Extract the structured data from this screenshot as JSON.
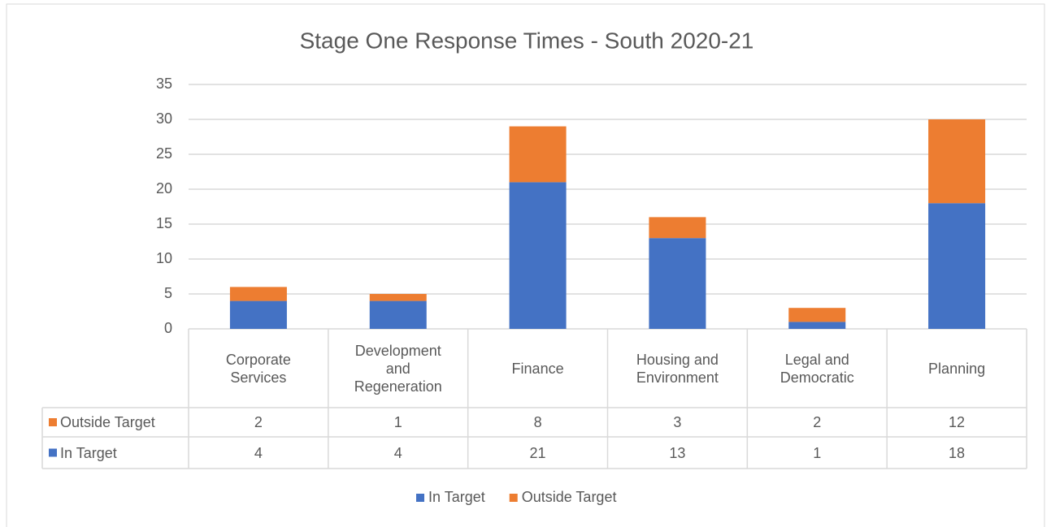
{
  "chart_data": {
    "type": "stacked_bar",
    "title": "Stage One Response Times - South 2020-21",
    "categories": [
      "Corporate Services",
      "Development and Regeneration",
      "Finance",
      "Housing and Environment",
      "Legal and Democratic",
      "Planning"
    ],
    "series": [
      {
        "name": "In Target",
        "color": "#4472c4",
        "values": [
          4,
          4,
          21,
          13,
          1,
          18
        ]
      },
      {
        "name": "Outside Target",
        "color": "#ed7d31",
        "values": [
          2,
          1,
          8,
          3,
          2,
          12
        ]
      }
    ],
    "ylim": [
      0,
      35
    ],
    "yticks": [
      0,
      5,
      10,
      15,
      20,
      25,
      30,
      35
    ],
    "grid": true,
    "legend": "bottom",
    "data_table": true
  }
}
